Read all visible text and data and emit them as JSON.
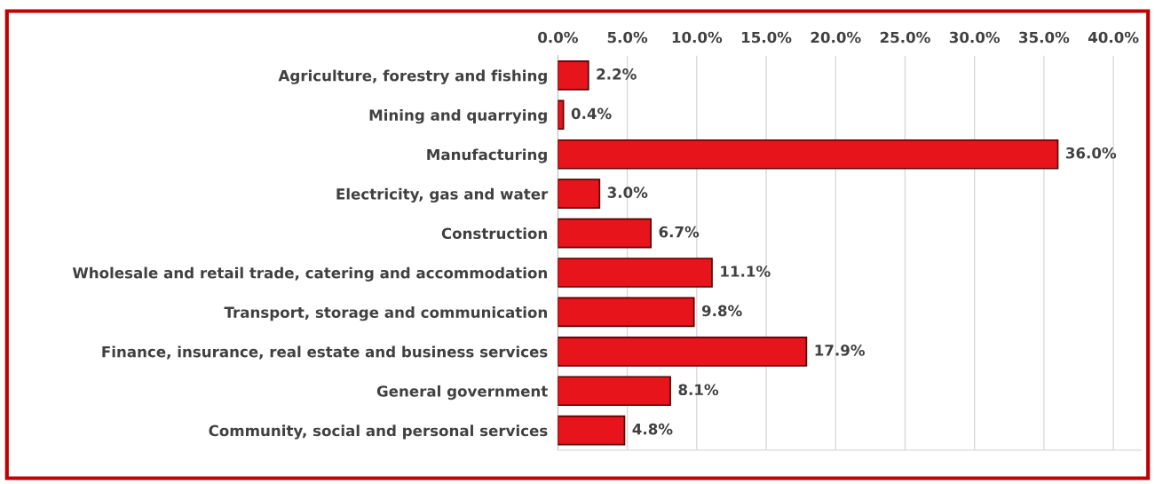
{
  "chart_data": {
    "type": "bar",
    "orientation": "horizontal",
    "categories": [
      "Agriculture, forestry and fishing",
      "Mining and quarrying",
      "Manufacturing",
      "Electricity, gas and water",
      "Construction",
      "Wholesale and retail trade, catering and accommodation",
      "Transport, storage and communication",
      "Finance, insurance, real estate and business services",
      "General government",
      "Community, social and personal services"
    ],
    "values": [
      2.2,
      0.4,
      36.0,
      3.0,
      6.7,
      11.1,
      9.8,
      17.9,
      8.1,
      4.8
    ],
    "value_labels": [
      "2.2%",
      "0.4%",
      "36.0%",
      "3.0%",
      "6.7%",
      "11.1%",
      "9.8%",
      "17.9%",
      "8.1%",
      "4.8%"
    ],
    "color": "#e8141c",
    "xlim": [
      0,
      42
    ],
    "xticks": [
      {
        "value": 0,
        "label": "0.0%"
      },
      {
        "value": 5,
        "label": "5.0%"
      },
      {
        "value": 10,
        "label": "10.0%"
      },
      {
        "value": 15,
        "label": "15.0%"
      },
      {
        "value": 20,
        "label": "20.0%"
      },
      {
        "value": 25,
        "label": "25.0%"
      },
      {
        "value": 30,
        "label": "30.0%"
      },
      {
        "value": 35,
        "label": "35.0%"
      },
      {
        "value": 40,
        "label": "40.0%"
      }
    ],
    "grid": "x",
    "legend": false
  }
}
